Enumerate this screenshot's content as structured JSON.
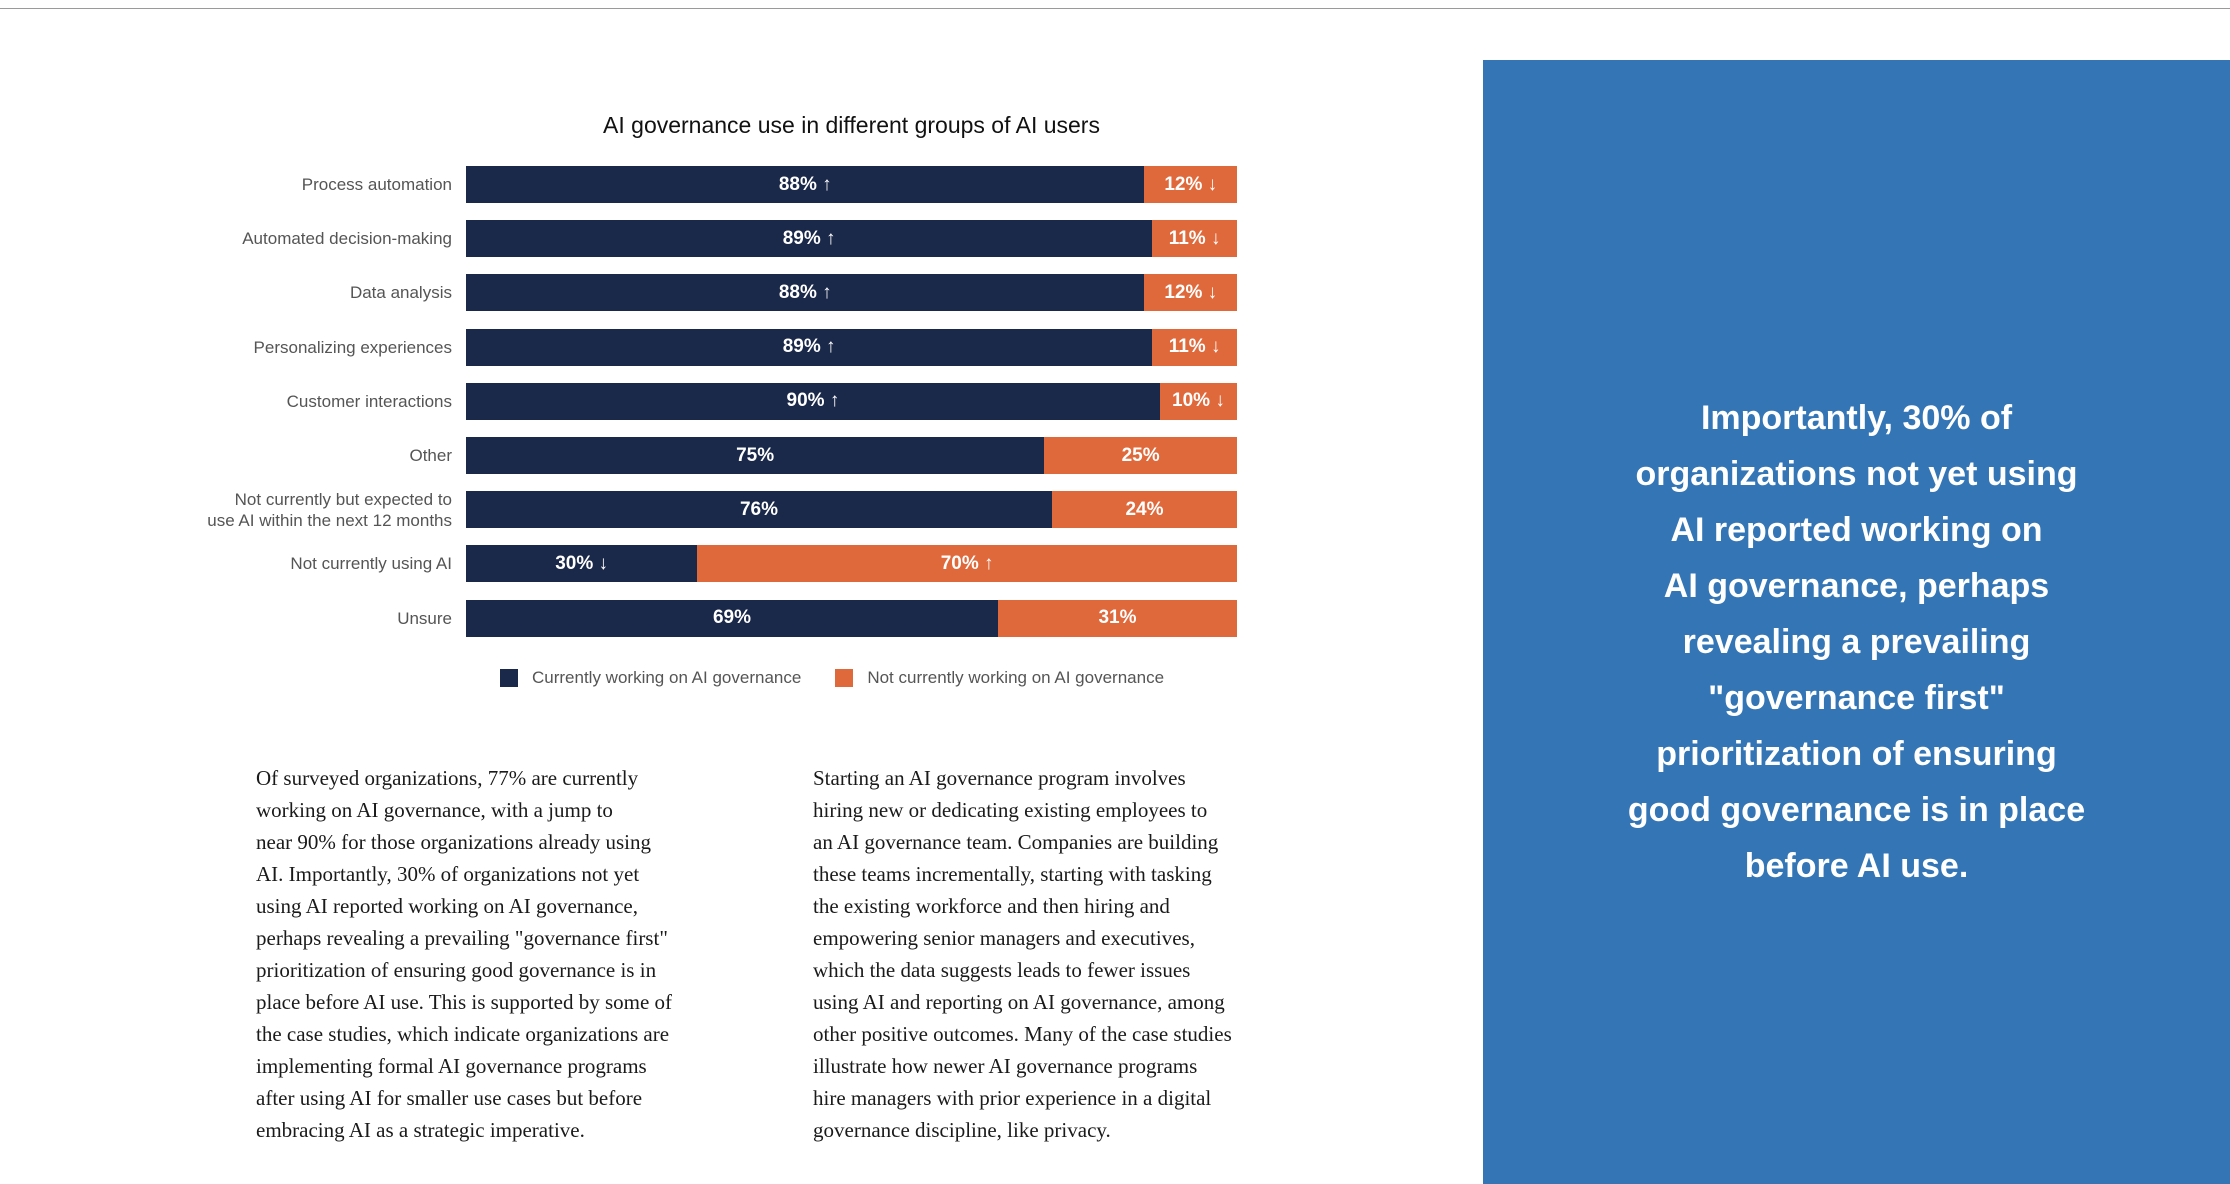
{
  "chart_data": {
    "type": "bar",
    "orientation": "horizontal",
    "stacked": true,
    "title": "AI governance use in different groups of AI users",
    "categories": [
      "Process automation",
      "Automated decision-making",
      "Data analysis",
      "Personalizing experiences",
      "Customer interactions",
      "Other",
      "Not currently but expected to use AI within the next 12 months",
      "Not currently using AI",
      "Unsure"
    ],
    "category_lines": [
      [
        "Process automation"
      ],
      [
        "Automated decision-making"
      ],
      [
        "Data analysis"
      ],
      [
        "Personalizing experiences"
      ],
      [
        "Customer interactions"
      ],
      [
        "Other"
      ],
      [
        "Not currently but expected to",
        "use AI within the next 12 months"
      ],
      [
        "Not currently using AI"
      ],
      [
        "Unsure"
      ]
    ],
    "series": [
      {
        "name": "Currently working on AI governance",
        "color": "#1a2849",
        "values": [
          88,
          89,
          88,
          89,
          90,
          75,
          76,
          30,
          69
        ],
        "labels": [
          "88% ↑",
          "89% ↑",
          "88% ↑",
          "89% ↑",
          "90% ↑",
          "75%",
          "76%",
          "30% ↓",
          "69%"
        ]
      },
      {
        "name": "Not currently working on AI governance",
        "color": "#e0693b",
        "values": [
          12,
          11,
          12,
          11,
          10,
          25,
          24,
          70,
          31
        ],
        "labels": [
          "12% ↓",
          "11% ↓",
          "12% ↓",
          "11% ↓",
          "10% ↓",
          "25%",
          "24%",
          "70% ↑",
          "31%"
        ]
      }
    ],
    "xlim": [
      0,
      100
    ],
    "legend_position": "bottom",
    "grid": false
  },
  "body": {
    "left_lines": [
      "Of surveyed organizations, 77% are currently",
      "working on AI governance, with a jump to",
      "near 90% for those organizations already using",
      "AI. Importantly, 30% of organizations not yet",
      "using AI reported working on AI governance,",
      "perhaps revealing a prevailing \"governance first\"",
      "prioritization of ensuring good governance is in",
      "place before AI use. This is supported by some of",
      "the case studies, which indicate organizations are",
      "implementing formal AI governance programs",
      "after using AI for smaller use cases but before",
      "embracing AI as a strategic imperative."
    ],
    "right_lines": [
      "Starting an AI governance program involves",
      "hiring new or dedicating existing employees to",
      "an AI governance team. Companies are building",
      "these teams incrementally, starting with tasking",
      "the existing workforce and then hiring and",
      "empowering senior managers and executives,",
      "which the data suggests leads to fewer issues",
      "using AI and reporting on AI governance, among",
      "other positive outcomes. Many of the case studies",
      "illustrate how newer AI governance programs",
      "hire managers with prior experience in a digital",
      "governance discipline, like privacy."
    ]
  },
  "callout": {
    "color": "#3375b5",
    "lines": [
      "Importantly, 30% of",
      "organizations not yet using",
      "AI reported working on",
      "AI governance, perhaps",
      "revealing a prevailing",
      "\"governance first\"",
      "prioritization of ensuring",
      "good governance is in place",
      "before AI use."
    ]
  }
}
